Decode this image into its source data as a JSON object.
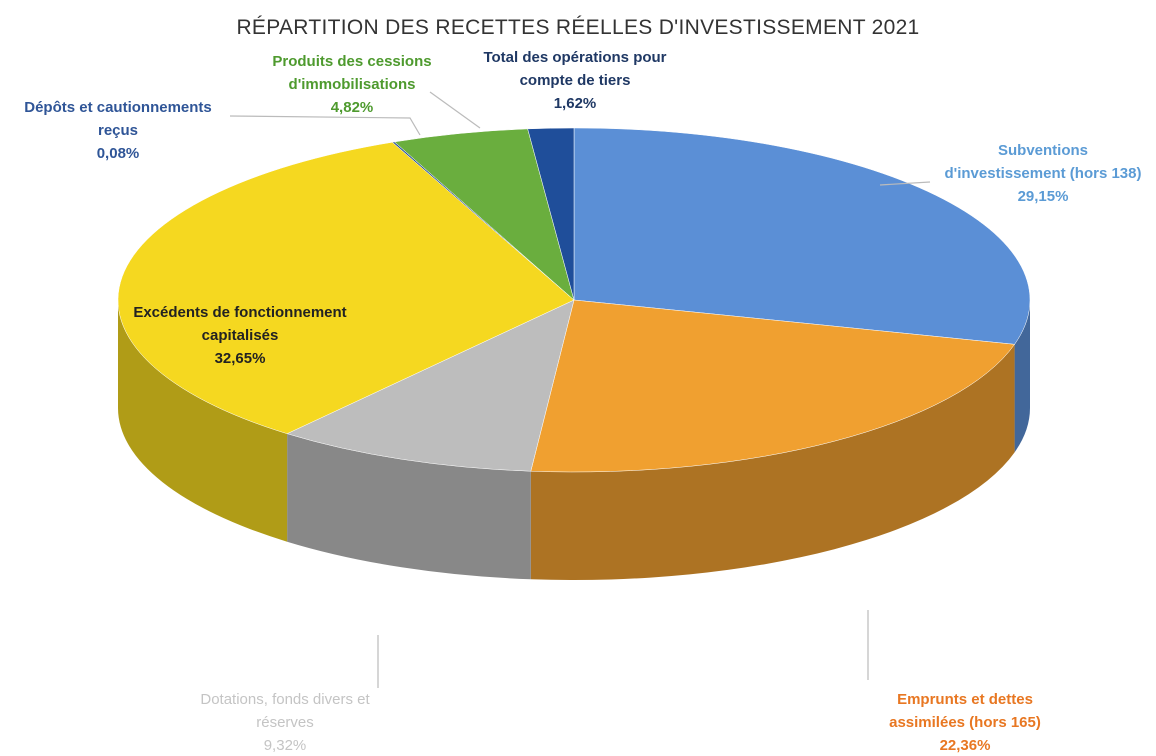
{
  "chart_data": {
    "type": "pie3d",
    "title": "RÉPARTITION DES RECETTES RÉELLES D'INVESTISSEMENT 2021",
    "categories": [
      "Subventions d'investissement (hors 138)",
      "Emprunts et dettes assimilées (hors 165)",
      "Dotations, fonds divers et réserves",
      "Excédents de fonctionnement capitalisés",
      "Dépôts et cautionnements reçus",
      "Produits des cessions d'immobilisations",
      "Total des opérations pour compte de tiers"
    ],
    "values": [
      29.15,
      22.36,
      9.32,
      32.65,
      0.08,
      4.82,
      1.62
    ],
    "value_labels": [
      "29,15%",
      "22,36%",
      "9,32%",
      "32,65%",
      "0,08%",
      "4,82%",
      "1,62%"
    ],
    "colors": [
      "#5b8fd6",
      "#f0a030",
      "#bdbdbd",
      "#f5d820",
      "#2f5597",
      "#6aae3e",
      "#1f4e9a"
    ],
    "label_colors": [
      "#5b9bd5",
      "#e87722",
      "#c4c4c4",
      "#222222",
      "#2f5597",
      "#4e9a2e",
      "#1f3864"
    ]
  }
}
